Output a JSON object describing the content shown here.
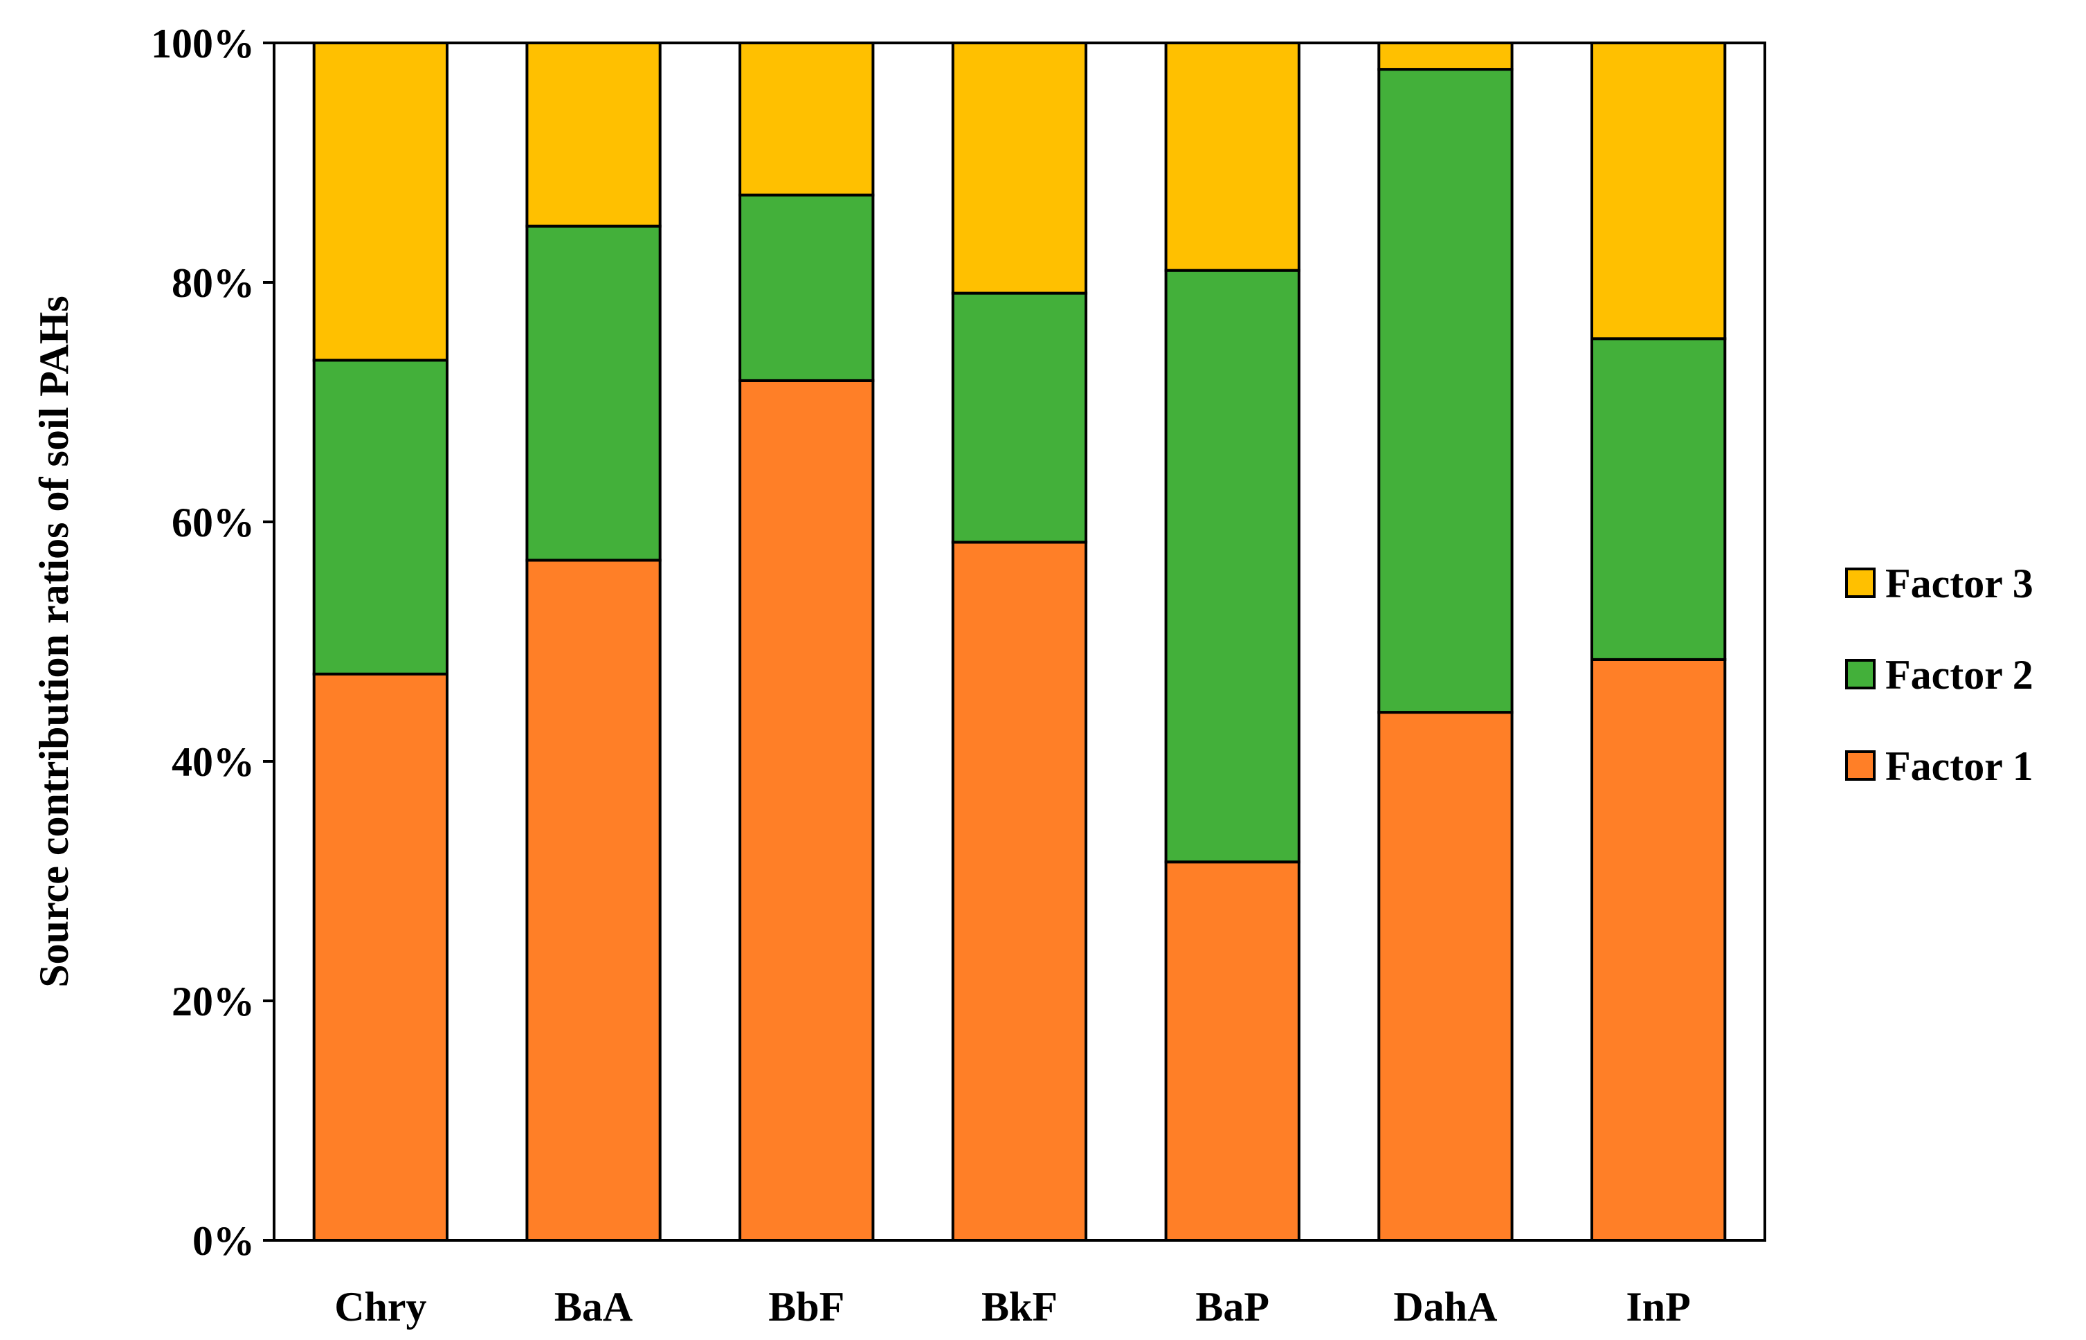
{
  "chart_data": {
    "type": "bar",
    "stacked": true,
    "title": "",
    "xlabel": "",
    "ylabel": "Source contribution ratios of soil PAHs",
    "ylim": [
      0,
      100
    ],
    "y_ticks": [
      "0%",
      "20%",
      "40%",
      "60%",
      "80%",
      "100%"
    ],
    "categories": [
      "Chry",
      "BaA",
      "BbF",
      "BkF",
      "BaP",
      "DahA",
      "InP"
    ],
    "series": [
      {
        "name": "Factor 1",
        "color": "#FF7F27",
        "values": [
          47.3,
          56.8,
          71.8,
          58.3,
          31.6,
          44.1,
          48.5
        ]
      },
      {
        "name": "Factor 2",
        "color": "#43B03A",
        "values": [
          26.2,
          27.9,
          15.5,
          20.8,
          49.4,
          53.7,
          26.8
        ]
      },
      {
        "name": "Factor 3",
        "color": "#FFC000",
        "values": [
          26.5,
          15.3,
          12.7,
          20.9,
          19.0,
          2.2,
          24.7
        ]
      }
    ],
    "legend": {
      "position": "right",
      "order": [
        "Factor 3",
        "Factor 2",
        "Factor 1"
      ]
    },
    "grid": false
  }
}
